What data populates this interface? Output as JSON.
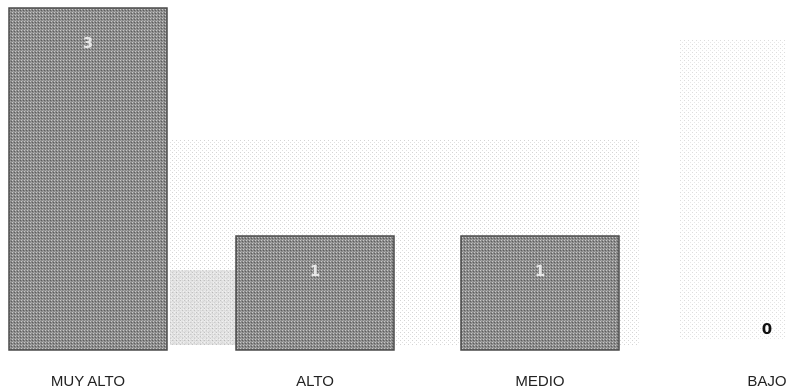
{
  "chart_data": {
    "type": "bar",
    "categories": [
      "MUY ALTO",
      "ALTO",
      "MEDIO",
      "BAJO"
    ],
    "values": [
      3,
      1,
      1,
      0
    ],
    "data_labels": [
      "3",
      "1",
      "1",
      "0"
    ],
    "ylim": [
      0,
      3
    ],
    "grid": false,
    "legend": "none",
    "colors": {
      "bar_fill": "#8c8c8c",
      "bar_edge": "#4a4a4a",
      "label_inside": "#e6e6e6",
      "label_outside": "#111111",
      "category_text": "#222222"
    }
  }
}
